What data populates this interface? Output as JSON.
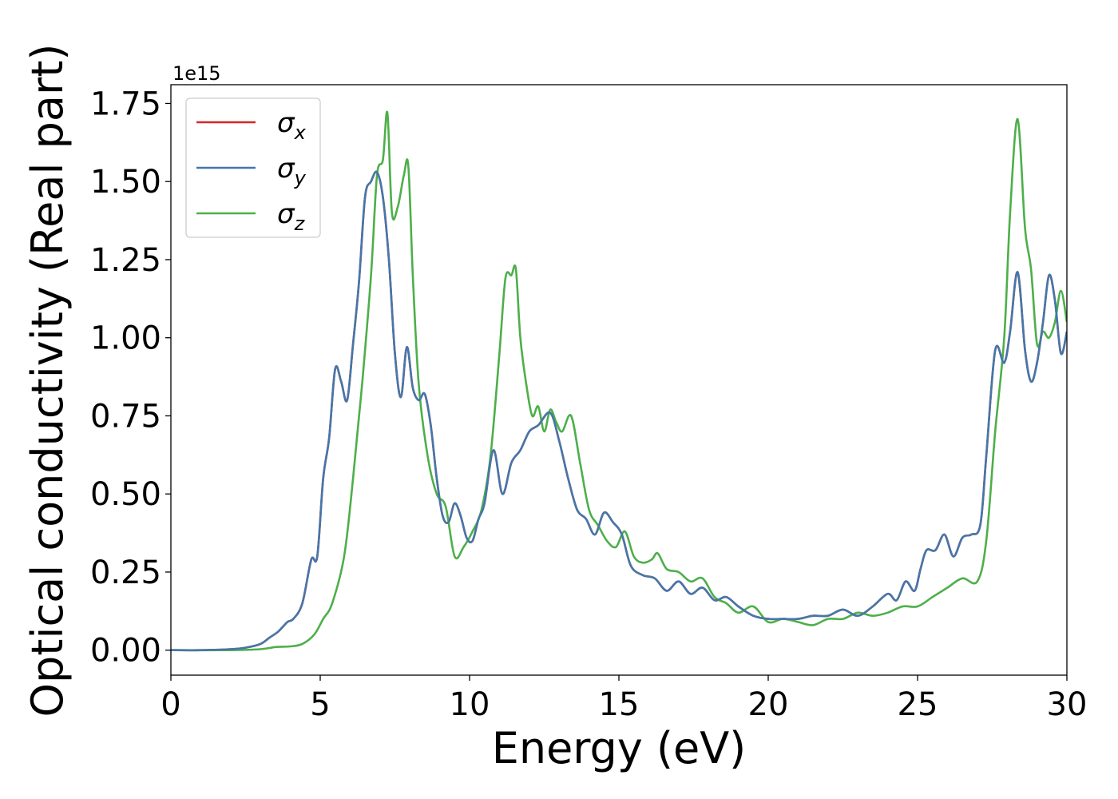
{
  "chart_data": {
    "type": "line",
    "xlabel": "Energy (eV)",
    "ylabel": "Optical conductivity (Real part)",
    "y_offset_label": "1e15",
    "xlim": [
      0,
      30
    ],
    "ylim": [
      -0.08,
      1.81
    ],
    "x_ticks": [
      0,
      5,
      10,
      15,
      20,
      25,
      30
    ],
    "x_tick_labels": [
      "0",
      "5",
      "10",
      "15",
      "20",
      "25",
      "30"
    ],
    "y_ticks": [
      0.0,
      0.25,
      0.5,
      0.75,
      1.0,
      1.25,
      1.5,
      1.75
    ],
    "y_tick_labels": [
      "0.00",
      "0.25",
      "0.50",
      "0.75",
      "1.00",
      "1.25",
      "1.50",
      "1.75"
    ],
    "grid": false,
    "legend_position": "top-left",
    "series": [
      {
        "name": "σ_x",
        "symbol": "σ",
        "subscript": "x",
        "color": "#d62728",
        "x": [
          0,
          1,
          2,
          2.5,
          3,
          3.3,
          3.6,
          3.9,
          4.1,
          4.4,
          4.7,
          4.9,
          5.1,
          5.3,
          5.5,
          5.7,
          5.9,
          6.1,
          6.3,
          6.5,
          6.7,
          6.9,
          7.1,
          7.3,
          7.5,
          7.7,
          7.9,
          8.1,
          8.3,
          8.5,
          8.7,
          8.9,
          9.1,
          9.3,
          9.5,
          9.7,
          9.9,
          10.1,
          10.3,
          10.5,
          10.8,
          11.1,
          11.4,
          11.7,
          12.0,
          12.3,
          12.7,
          13.0,
          13.3,
          13.6,
          13.9,
          14.2,
          14.5,
          14.8,
          15.1,
          15.4,
          15.8,
          16.2,
          16.6,
          17.0,
          17.4,
          17.8,
          18.2,
          18.6,
          19.0,
          19.5,
          20.0,
          20.5,
          21.0,
          21.5,
          22.0,
          22.5,
          23.0,
          23.5,
          24.0,
          24.3,
          24.6,
          24.9,
          25.1,
          25.3,
          25.6,
          25.9,
          26.2,
          26.5,
          26.8,
          27.1,
          27.3,
          27.6,
          27.9,
          28.1,
          28.35,
          28.6,
          28.8,
          29.0,
          29.2,
          29.4,
          29.6,
          29.8,
          30.0
        ],
        "y": [
          0.0,
          0.0,
          0.003,
          0.008,
          0.02,
          0.04,
          0.06,
          0.09,
          0.1,
          0.15,
          0.29,
          0.3,
          0.55,
          0.68,
          0.9,
          0.86,
          0.8,
          0.98,
          1.18,
          1.45,
          1.5,
          1.53,
          1.45,
          1.25,
          0.95,
          0.81,
          0.97,
          0.84,
          0.8,
          0.82,
          0.72,
          0.55,
          0.43,
          0.41,
          0.47,
          0.43,
          0.36,
          0.35,
          0.42,
          0.47,
          0.64,
          0.5,
          0.6,
          0.64,
          0.7,
          0.72,
          0.76,
          0.67,
          0.55,
          0.45,
          0.42,
          0.37,
          0.44,
          0.41,
          0.37,
          0.27,
          0.24,
          0.23,
          0.19,
          0.22,
          0.18,
          0.2,
          0.16,
          0.17,
          0.14,
          0.11,
          0.1,
          0.1,
          0.1,
          0.11,
          0.11,
          0.13,
          0.11,
          0.14,
          0.18,
          0.16,
          0.22,
          0.19,
          0.26,
          0.32,
          0.32,
          0.37,
          0.3,
          0.36,
          0.37,
          0.4,
          0.62,
          0.96,
          0.92,
          1.02,
          1.21,
          0.96,
          0.86,
          0.92,
          1.05,
          1.2,
          1.12,
          0.95,
          1.02
        ]
      },
      {
        "name": "σ_y",
        "symbol": "σ",
        "subscript": "y",
        "color": "#4477aa",
        "x": [
          0,
          1,
          2,
          2.5,
          3,
          3.3,
          3.6,
          3.9,
          4.1,
          4.4,
          4.7,
          4.9,
          5.1,
          5.3,
          5.5,
          5.7,
          5.9,
          6.1,
          6.3,
          6.5,
          6.7,
          6.9,
          7.1,
          7.3,
          7.5,
          7.7,
          7.9,
          8.1,
          8.3,
          8.5,
          8.7,
          8.9,
          9.1,
          9.3,
          9.5,
          9.7,
          9.9,
          10.1,
          10.3,
          10.5,
          10.8,
          11.1,
          11.4,
          11.7,
          12.0,
          12.3,
          12.7,
          13.0,
          13.3,
          13.6,
          13.9,
          14.2,
          14.5,
          14.8,
          15.1,
          15.4,
          15.8,
          16.2,
          16.6,
          17.0,
          17.4,
          17.8,
          18.2,
          18.6,
          19.0,
          19.5,
          20.0,
          20.5,
          21.0,
          21.5,
          22.0,
          22.5,
          23.0,
          23.5,
          24.0,
          24.3,
          24.6,
          24.9,
          25.1,
          25.3,
          25.6,
          25.9,
          26.2,
          26.5,
          26.8,
          27.1,
          27.3,
          27.6,
          27.9,
          28.1,
          28.35,
          28.6,
          28.8,
          29.0,
          29.2,
          29.4,
          29.6,
          29.8,
          30.0
        ],
        "y": [
          0.0,
          0.0,
          0.003,
          0.008,
          0.02,
          0.04,
          0.06,
          0.09,
          0.1,
          0.15,
          0.29,
          0.3,
          0.55,
          0.68,
          0.9,
          0.86,
          0.8,
          0.98,
          1.18,
          1.45,
          1.5,
          1.53,
          1.45,
          1.25,
          0.95,
          0.81,
          0.97,
          0.84,
          0.8,
          0.82,
          0.72,
          0.55,
          0.43,
          0.41,
          0.47,
          0.43,
          0.36,
          0.35,
          0.42,
          0.47,
          0.64,
          0.5,
          0.6,
          0.64,
          0.7,
          0.72,
          0.76,
          0.67,
          0.55,
          0.45,
          0.42,
          0.37,
          0.44,
          0.41,
          0.37,
          0.27,
          0.24,
          0.23,
          0.19,
          0.22,
          0.18,
          0.2,
          0.16,
          0.17,
          0.14,
          0.11,
          0.1,
          0.1,
          0.1,
          0.11,
          0.11,
          0.13,
          0.11,
          0.14,
          0.18,
          0.16,
          0.22,
          0.19,
          0.26,
          0.32,
          0.32,
          0.37,
          0.3,
          0.36,
          0.37,
          0.4,
          0.62,
          0.96,
          0.92,
          1.02,
          1.21,
          0.96,
          0.86,
          0.92,
          1.05,
          1.2,
          1.12,
          0.95,
          1.02
        ]
      },
      {
        "name": "σ_z",
        "symbol": "σ",
        "subscript": "z",
        "color": "#4daf4a",
        "x": [
          0,
          2,
          3,
          3.5,
          4.0,
          4.4,
          4.8,
          5.1,
          5.4,
          5.8,
          6.1,
          6.4,
          6.7,
          6.9,
          7.1,
          7.25,
          7.4,
          7.6,
          7.8,
          7.95,
          8.1,
          8.3,
          8.6,
          8.9,
          9.2,
          9.5,
          9.8,
          10.1,
          10.4,
          10.7,
          11.0,
          11.2,
          11.4,
          11.55,
          11.7,
          11.9,
          12.1,
          12.3,
          12.5,
          12.7,
          12.9,
          13.1,
          13.4,
          13.7,
          14.0,
          14.3,
          14.6,
          14.9,
          15.2,
          15.5,
          15.8,
          16.1,
          16.3,
          16.6,
          17.0,
          17.4,
          17.8,
          18.2,
          18.6,
          19.0,
          19.5,
          20.0,
          20.5,
          21.0,
          21.5,
          22.0,
          22.5,
          23.0,
          23.5,
          24.0,
          24.5,
          25.0,
          25.5,
          26.0,
          26.5,
          27.0,
          27.3,
          27.6,
          27.9,
          28.1,
          28.35,
          28.6,
          28.8,
          29.0,
          29.2,
          29.4,
          29.6,
          29.8,
          30.0
        ],
        "y": [
          0.0,
          0.0,
          0.003,
          0.01,
          0.012,
          0.02,
          0.05,
          0.1,
          0.15,
          0.3,
          0.55,
          0.85,
          1.2,
          1.52,
          1.57,
          1.72,
          1.4,
          1.42,
          1.52,
          1.55,
          1.2,
          0.85,
          0.62,
          0.5,
          0.46,
          0.3,
          0.33,
          0.38,
          0.45,
          0.62,
          0.95,
          1.19,
          1.2,
          1.22,
          1.0,
          0.85,
          0.75,
          0.78,
          0.7,
          0.77,
          0.73,
          0.7,
          0.75,
          0.6,
          0.45,
          0.4,
          0.35,
          0.33,
          0.38,
          0.3,
          0.28,
          0.29,
          0.31,
          0.26,
          0.25,
          0.22,
          0.23,
          0.17,
          0.15,
          0.12,
          0.14,
          0.09,
          0.1,
          0.09,
          0.08,
          0.1,
          0.1,
          0.12,
          0.11,
          0.12,
          0.14,
          0.14,
          0.17,
          0.2,
          0.23,
          0.22,
          0.35,
          0.7,
          1.0,
          1.4,
          1.7,
          1.35,
          1.22,
          0.98,
          1.02,
          1.0,
          1.05,
          1.15,
          1.05
        ]
      }
    ]
  }
}
